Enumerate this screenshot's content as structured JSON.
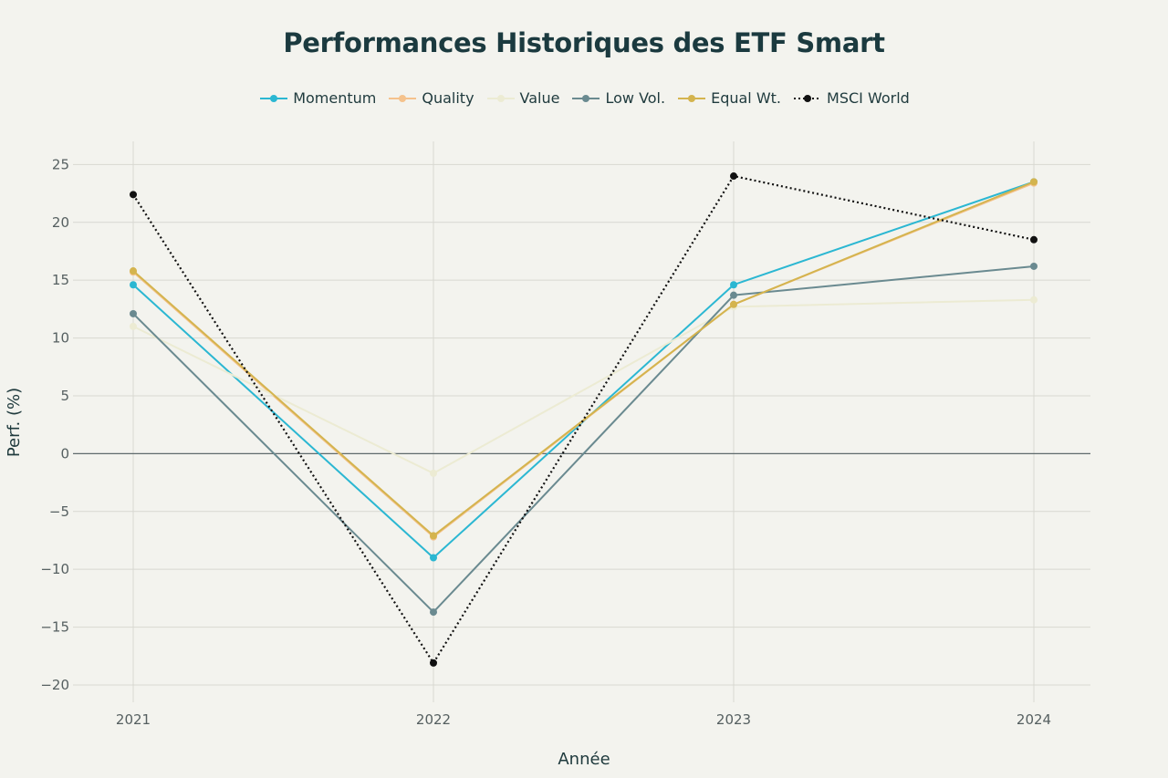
{
  "chart_data": {
    "type": "line",
    "title": "Performances Historiques des ETF Smart",
    "xlabel": "Année",
    "ylabel": "Perf. (%)",
    "categories": [
      "2021",
      "2022",
      "2023",
      "2024"
    ],
    "ylim": [
      -21.5,
      27
    ],
    "yticks": [
      25,
      20,
      15,
      10,
      5,
      0,
      -5,
      -10,
      -15,
      -20
    ],
    "ytick_labels": [
      "25",
      "20",
      "15",
      "10",
      "5",
      "0",
      "−5",
      "−10",
      "−15",
      "−20"
    ],
    "grid": true,
    "legend_position": "top-center",
    "series": [
      {
        "name": "Momentum",
        "values": [
          14.6,
          -9.0,
          14.6,
          23.5
        ],
        "color": "#2bb7d2",
        "dash": "solid",
        "markers": true
      },
      {
        "name": "Quality",
        "values": [
          15.7,
          -7.2,
          12.9,
          23.4
        ],
        "color": "#f5c28c",
        "dash": "solid",
        "markers": true
      },
      {
        "name": "Value",
        "values": [
          11.0,
          -1.7,
          12.7,
          13.3
        ],
        "color": "#ecebd3",
        "dash": "solid",
        "markers": true
      },
      {
        "name": "Low Vol.",
        "values": [
          12.1,
          -13.7,
          13.7,
          16.2
        ],
        "color": "#6a8a90",
        "dash": "solid",
        "markers": true
      },
      {
        "name": "Equal Wt.",
        "values": [
          15.8,
          -7.1,
          12.9,
          23.5
        ],
        "color": "#d4b44e",
        "dash": "solid",
        "markers": true
      },
      {
        "name": "MSCI World",
        "values": [
          22.4,
          -18.1,
          24.0,
          18.5
        ],
        "color": "#111111",
        "dash": "dotted",
        "markers": true
      }
    ]
  }
}
